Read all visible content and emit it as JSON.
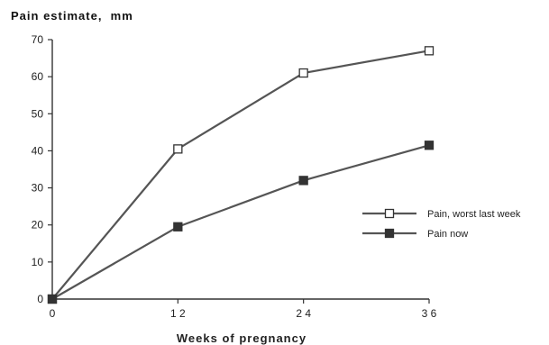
{
  "chart_data": {
    "type": "line",
    "ylabel": "Pain estimate,  mm",
    "xlabel": "Weeks  of  pregnancy",
    "x": [
      0,
      12,
      24,
      36
    ],
    "x_tick_labels": [
      "0",
      "1 2",
      "2 4",
      "3 6"
    ],
    "y_ticks": [
      0,
      10,
      20,
      30,
      40,
      50,
      60,
      70
    ],
    "xlim": [
      0,
      36
    ],
    "ylim": [
      0,
      70
    ],
    "grid": false,
    "legend_position": "right",
    "series": [
      {
        "name": "Pain, worst last week",
        "marker": "open-square",
        "values": [
          0,
          40.5,
          61,
          67
        ]
      },
      {
        "name": "Pain now",
        "marker": "filled-square",
        "values": [
          0,
          19.5,
          32,
          41.5
        ]
      }
    ],
    "colors": {
      "line": "#555555",
      "axis": "#333333",
      "marker_fill_dark": "#333333",
      "marker_fill_open": "#ffffff"
    }
  }
}
